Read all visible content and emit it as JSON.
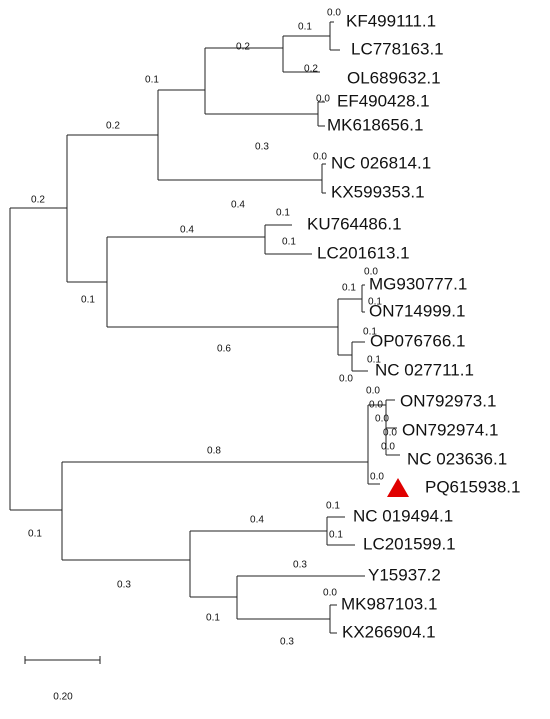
{
  "leaves": [
    "KF499111.1",
    "LC778163.1",
    "OL689632.1",
    "EF490428.1",
    "MK618656.1",
    "NC 026814.1",
    "KX599353.1",
    "KU764486.1",
    "LC201613.1",
    "MG930777.1",
    "ON714999.1",
    "OP076766.1",
    "NC 027711.1",
    "ON792973.1",
    "ON792974.1",
    "NC 023636.1",
    "PQ615938.1",
    "NC 019494.1",
    "LC201599.1",
    "Y15937.2",
    "MK987103.1",
    "KX266904.1"
  ],
  "branch_labels": [
    "0.0",
    "0.1",
    "0.2",
    "0.2",
    "0.0",
    "0.3",
    "0.1",
    "0.2",
    "0.0",
    "0.4",
    "0.2",
    "0.1",
    "0.4",
    "0.1",
    "0.1",
    "0.0",
    "0.1",
    "0.1",
    "0.6",
    "0.1",
    "0.1",
    "0.0",
    "0.0",
    "0.0",
    "0.0",
    "0.0",
    "0.0",
    "0.8",
    "0.0",
    "0.1",
    "0.4",
    "0.1",
    "0.1",
    "0.3",
    "0.3",
    "0.0",
    "0.1",
    "0.3"
  ],
  "scale_label": "0.20"
}
